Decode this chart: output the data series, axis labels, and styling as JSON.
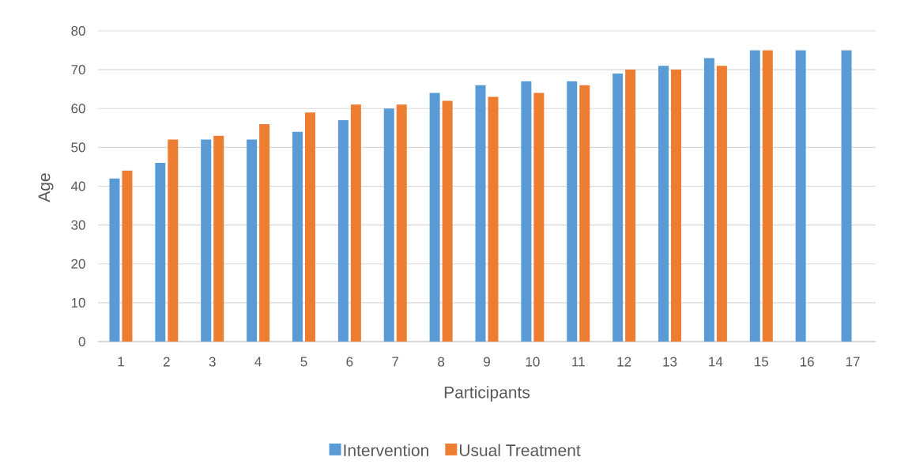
{
  "chart_data": {
    "type": "bar",
    "xlabel": "Participants",
    "ylabel": "Age",
    "categories": [
      "1",
      "2",
      "3",
      "4",
      "5",
      "6",
      "7",
      "8",
      "9",
      "10",
      "11",
      "12",
      "13",
      "14",
      "15",
      "16",
      "17"
    ],
    "series": [
      {
        "name": "Intervention",
        "color": "#5b9bd5",
        "values": [
          42,
          46,
          52,
          52,
          54,
          57,
          60,
          64,
          66,
          67,
          67,
          69,
          71,
          73,
          75,
          75,
          75
        ]
      },
      {
        "name": "Usual Treatment",
        "color": "#ed7d31",
        "values": [
          44,
          52,
          53,
          56,
          59,
          61,
          61,
          62,
          63,
          64,
          66,
          70,
          70,
          71,
          75,
          null,
          null
        ]
      }
    ],
    "ylim": [
      0,
      80
    ],
    "yticks": [
      0,
      10,
      20,
      30,
      40,
      50,
      60,
      70,
      80
    ],
    "grid": "y",
    "legend": "bottom"
  }
}
